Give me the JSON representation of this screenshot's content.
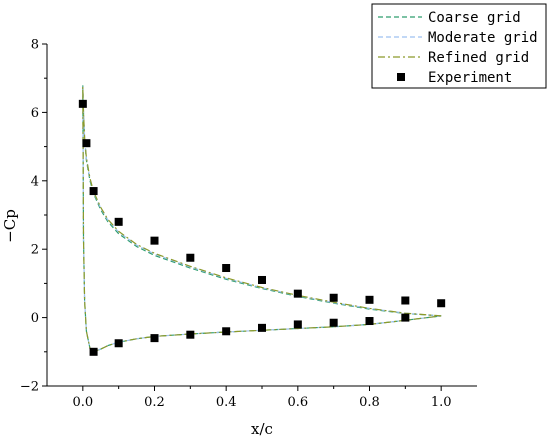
{
  "chart_data": {
    "type": "line",
    "title": "",
    "xlabel": "x/c",
    "ylabel": "−Cp",
    "xlim": [
      -0.1,
      1.1
    ],
    "ylim": [
      -2,
      8
    ],
    "xticks": [
      0.0,
      0.2,
      0.4,
      0.6,
      0.8,
      1.0
    ],
    "xtick_labels": [
      "0.0",
      "0.2",
      "0.4",
      "0.6",
      "0.8",
      "1.0"
    ],
    "yticks": [
      -2,
      0,
      2,
      4,
      6,
      8
    ],
    "ytick_labels": [
      "−2",
      "0",
      "2",
      "4",
      "6",
      "8"
    ],
    "grid": false,
    "legend_position": "top-right",
    "series": [
      {
        "name": "Coarse grid",
        "style": "dashed",
        "color": "#2e9e6e",
        "x": [
          1.0,
          0.9,
          0.8,
          0.7,
          0.6,
          0.5,
          0.4,
          0.3,
          0.2,
          0.15,
          0.1,
          0.07,
          0.05,
          0.03,
          0.02,
          0.01,
          0.005,
          0.002,
          0.0,
          0.002,
          0.005,
          0.01,
          0.02,
          0.03,
          0.05,
          0.07,
          0.1,
          0.15,
          0.2,
          0.3,
          0.4,
          0.5,
          0.6,
          0.7,
          0.8,
          0.9,
          1.0
        ],
        "y": [
          0.05,
          0.12,
          0.25,
          0.42,
          0.62,
          0.85,
          1.12,
          1.45,
          1.82,
          2.08,
          2.45,
          2.8,
          3.15,
          3.62,
          4.0,
          4.6,
          5.2,
          6.0,
          6.8,
          2.3,
          0.5,
          -0.4,
          -0.9,
          -1.0,
          -0.92,
          -0.82,
          -0.72,
          -0.62,
          -0.55,
          -0.48,
          -0.42,
          -0.37,
          -0.32,
          -0.27,
          -0.2,
          -0.08,
          0.05
        ]
      },
      {
        "name": "Moderate grid",
        "style": "dashed",
        "color": "#9ec1f0",
        "x": [
          1.0,
          0.9,
          0.8,
          0.7,
          0.6,
          0.5,
          0.4,
          0.3,
          0.2,
          0.15,
          0.1,
          0.07,
          0.05,
          0.03,
          0.02,
          0.01,
          0.005,
          0.002,
          0.0,
          0.002,
          0.005,
          0.01,
          0.02,
          0.03,
          0.05,
          0.07,
          0.1,
          0.15,
          0.2,
          0.3,
          0.4,
          0.5,
          0.6,
          0.7,
          0.8,
          0.9,
          1.0
        ],
        "y": [
          0.05,
          0.13,
          0.27,
          0.44,
          0.64,
          0.87,
          1.15,
          1.48,
          1.86,
          2.12,
          2.5,
          2.85,
          3.2,
          3.66,
          4.05,
          4.65,
          5.25,
          6.0,
          6.75,
          2.3,
          0.5,
          -0.4,
          -0.9,
          -1.0,
          -0.92,
          -0.82,
          -0.72,
          -0.62,
          -0.55,
          -0.48,
          -0.42,
          -0.37,
          -0.32,
          -0.27,
          -0.2,
          -0.08,
          0.05
        ]
      },
      {
        "name": "Refined grid",
        "style": "dash-dot",
        "color": "#8c9a2a",
        "x": [
          1.0,
          0.9,
          0.8,
          0.7,
          0.6,
          0.5,
          0.4,
          0.3,
          0.2,
          0.15,
          0.1,
          0.07,
          0.05,
          0.03,
          0.02,
          0.01,
          0.005,
          0.002,
          0.0,
          0.002,
          0.005,
          0.01,
          0.02,
          0.03,
          0.05,
          0.07,
          0.1,
          0.15,
          0.2,
          0.3,
          0.4,
          0.5,
          0.6,
          0.7,
          0.8,
          0.9,
          1.0
        ],
        "y": [
          0.05,
          0.13,
          0.27,
          0.45,
          0.65,
          0.88,
          1.16,
          1.5,
          1.88,
          2.14,
          2.52,
          2.87,
          3.22,
          3.68,
          4.07,
          4.67,
          5.27,
          6.02,
          6.75,
          2.3,
          0.5,
          -0.4,
          -0.9,
          -1.0,
          -0.92,
          -0.82,
          -0.72,
          -0.62,
          -0.55,
          -0.48,
          -0.42,
          -0.37,
          -0.32,
          -0.27,
          -0.2,
          -0.08,
          0.05
        ]
      },
      {
        "name": "Experiment",
        "style": "markers",
        "marker": "square",
        "color": "#000000",
        "x": [
          0.0,
          0.01,
          0.03,
          0.1,
          0.2,
          0.3,
          0.4,
          0.5,
          0.6,
          0.7,
          0.8,
          0.9,
          1.0,
          0.03,
          0.1,
          0.2,
          0.3,
          0.4,
          0.5,
          0.6,
          0.7,
          0.8,
          0.9
        ],
        "y": [
          6.25,
          5.1,
          3.7,
          2.8,
          2.25,
          1.75,
          1.45,
          1.1,
          0.7,
          0.58,
          0.52,
          0.5,
          0.42,
          -1.0,
          -0.75,
          -0.6,
          -0.5,
          -0.4,
          -0.3,
          -0.2,
          -0.15,
          -0.1,
          0.0
        ]
      }
    ]
  }
}
